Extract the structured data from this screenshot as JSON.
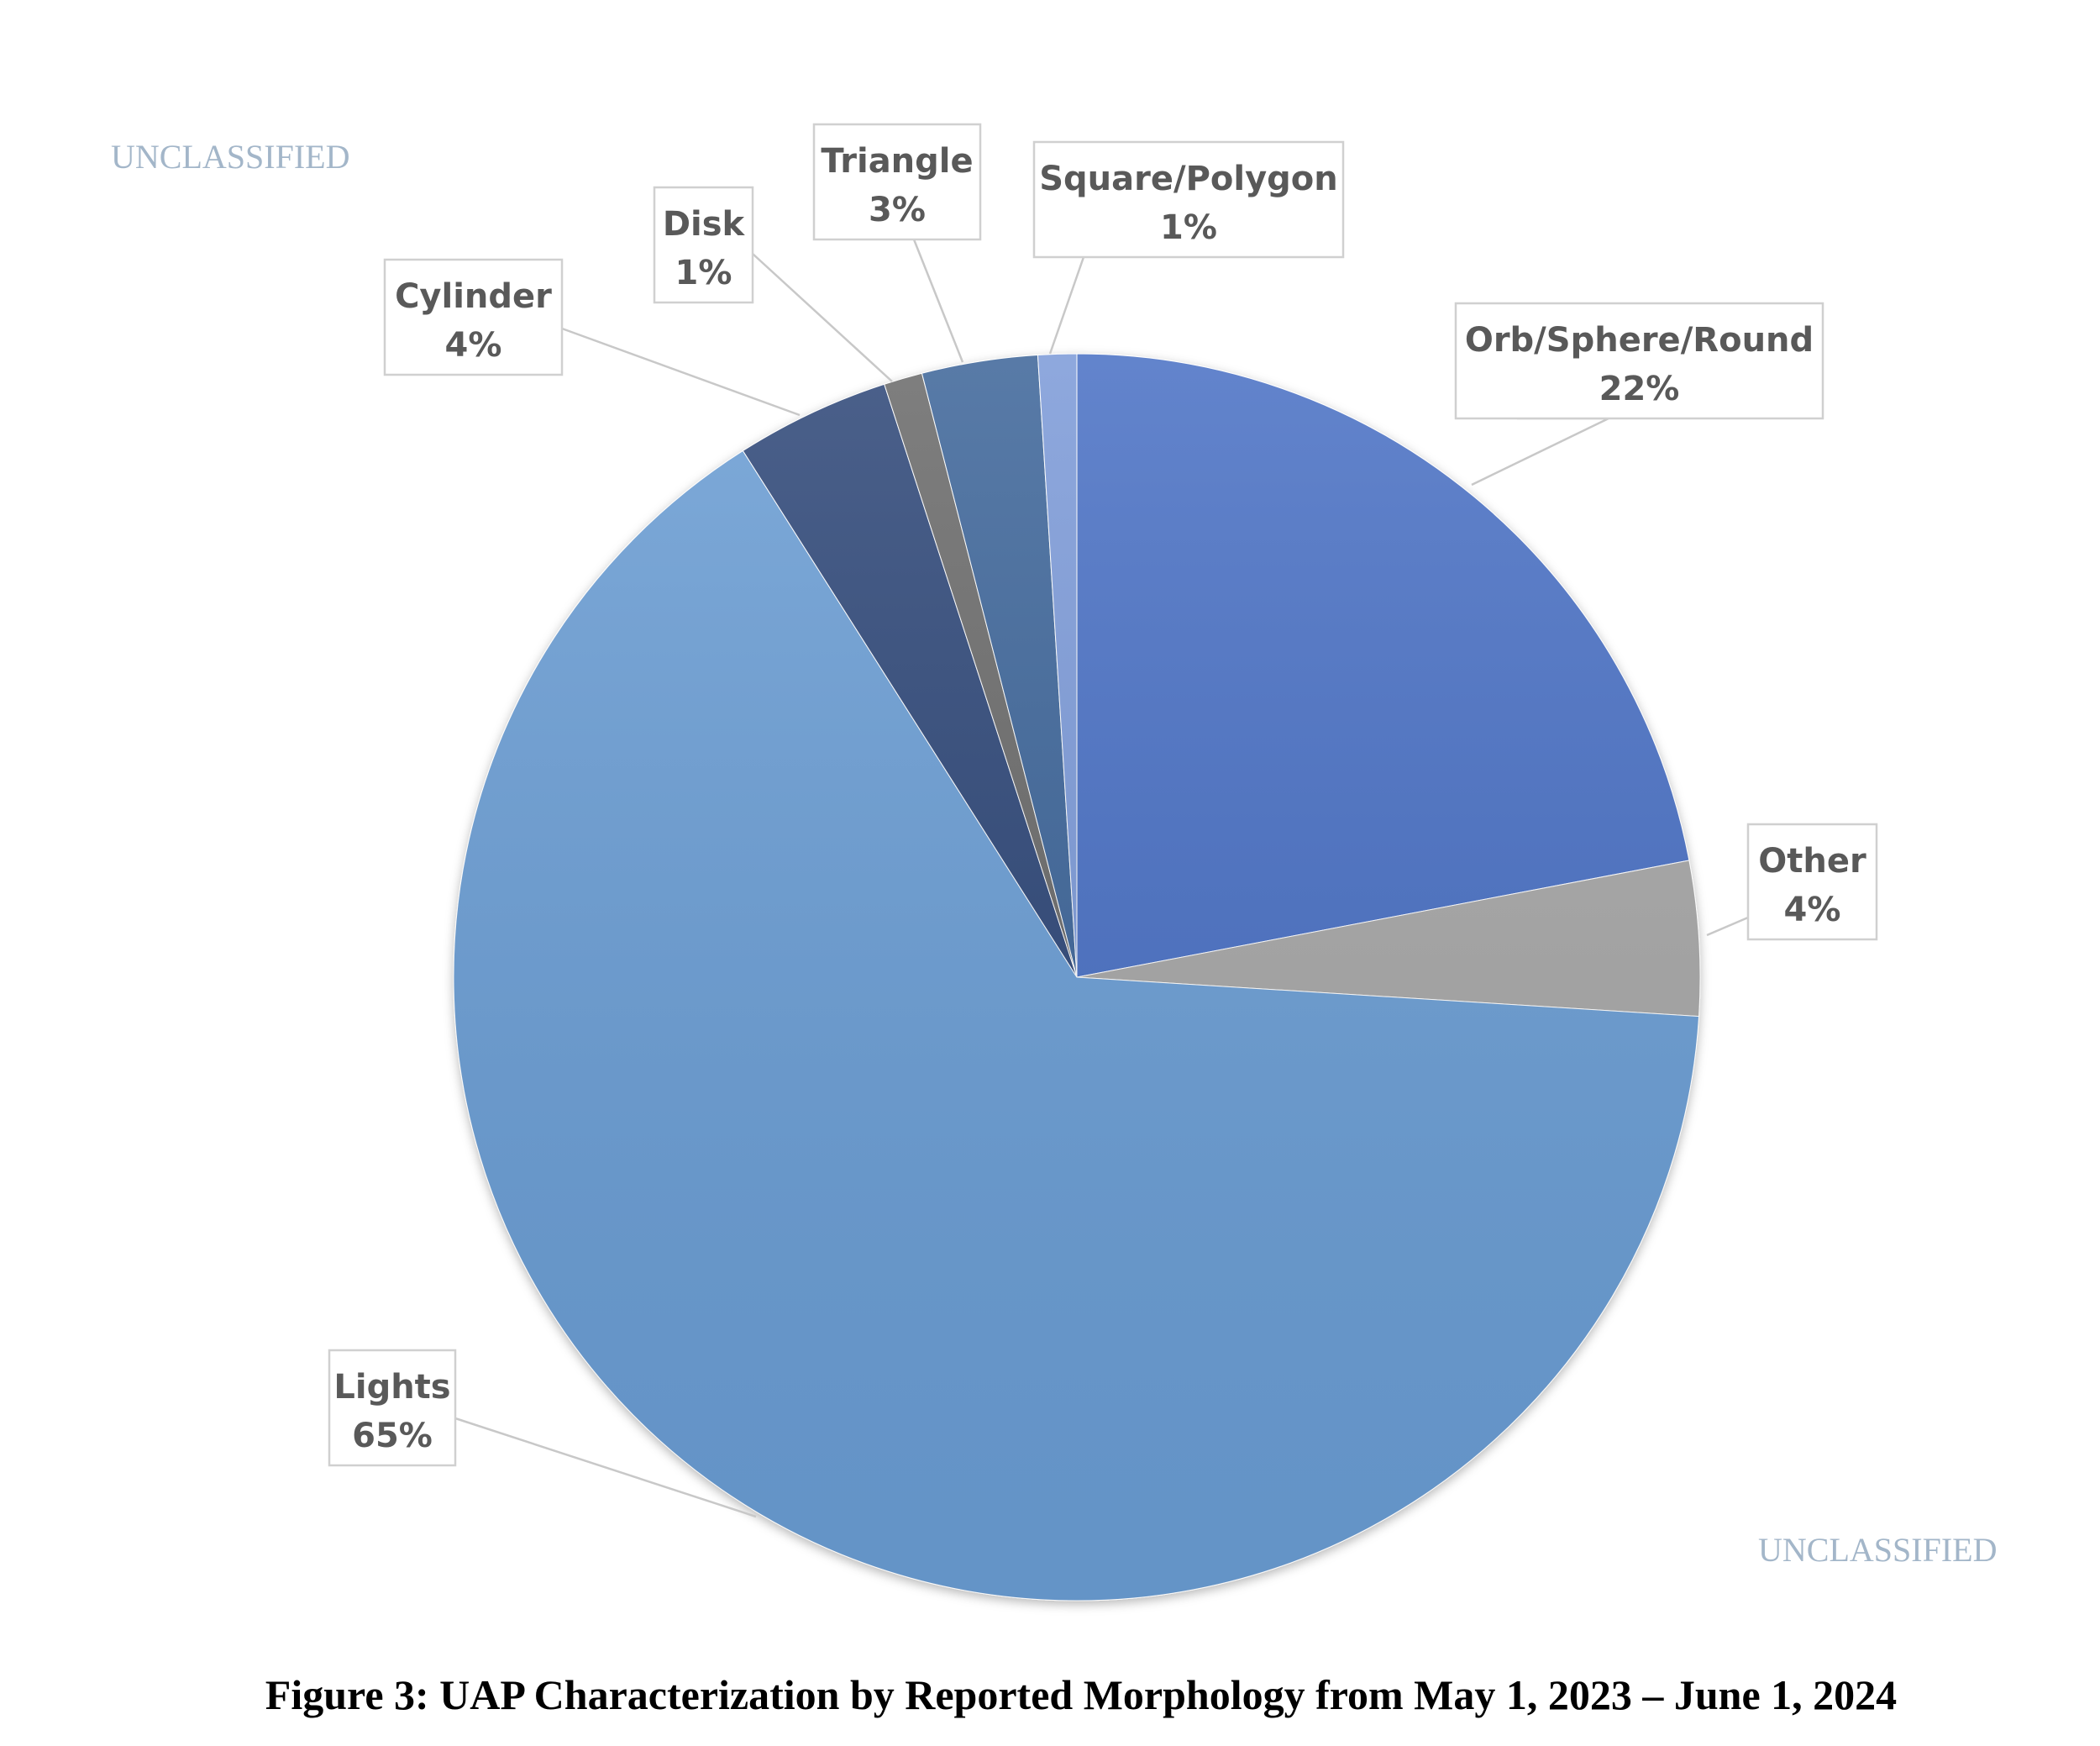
{
  "markings": {
    "top": "UNCLASSIFIED",
    "bottom": "UNCLASSIFIED"
  },
  "caption": "Figure 3:  UAP Characterization by Reported Morphology from May 1, 2023 – June 1, 2024",
  "chart_data": {
    "type": "pie",
    "title": "",
    "start_angle_deg": 0,
    "direction": "clockwise",
    "slices": [
      {
        "name": "Orb/Sphere/Round",
        "value": 22,
        "label": "22%",
        "color": "#4a70c4"
      },
      {
        "name": "Other",
        "value": 4,
        "label": "4%",
        "color": "#a6a6a6"
      },
      {
        "name": "Lights",
        "value": 65,
        "label": "65%",
        "color": "#6a9dd4"
      },
      {
        "name": "Cylinder",
        "value": 4,
        "label": "4%",
        "color": "#2f4678"
      },
      {
        "name": "Disk",
        "value": 1,
        "label": "1%",
        "color": "#6b6b6b"
      },
      {
        "name": "Triangle",
        "value": 3,
        "label": "3%",
        "color": "#3d6599"
      },
      {
        "name": "Square/Polygon",
        "value": 1,
        "label": "1%",
        "color": "#7b9ad8"
      }
    ]
  }
}
